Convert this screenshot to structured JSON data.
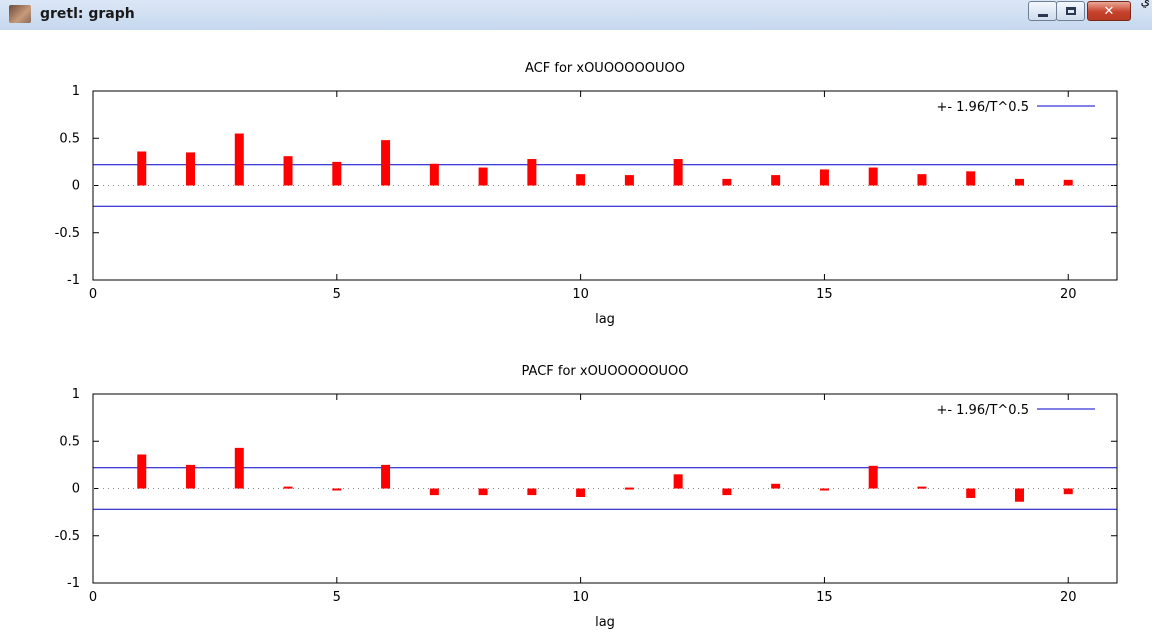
{
  "window": {
    "title": "gretl: graph",
    "corner_text": "ي"
  },
  "chart_data": [
    {
      "type": "bar",
      "title": "ACF for xOUOOOOOUOO",
      "xlabel": "lag",
      "ylabel": "",
      "xlim": [
        0,
        21
      ],
      "ylim": [
        -1,
        1
      ],
      "xticks": [
        0,
        5,
        10,
        15,
        20
      ],
      "yticks": [
        -1,
        -0.5,
        0,
        0.5,
        1
      ],
      "ytick_labels": [
        "-1",
        "-0.5",
        "0",
        "0.5",
        "1"
      ],
      "x": [
        1,
        2,
        3,
        4,
        5,
        6,
        7,
        8,
        9,
        10,
        11,
        12,
        13,
        14,
        15,
        16,
        17,
        18,
        19,
        20
      ],
      "values": [
        0.36,
        0.35,
        0.55,
        0.31,
        0.25,
        0.48,
        0.23,
        0.19,
        0.28,
        0.12,
        0.11,
        0.28,
        0.07,
        0.11,
        0.17,
        0.19,
        0.12,
        0.15,
        0.07,
        0.06
      ],
      "bar_color": "#ff0000",
      "band": {
        "label": "+- 1.96/T^0.5",
        "value": 0.22,
        "color": "#0000cc"
      },
      "legend_position": "top-right",
      "zero_line": "dotted"
    },
    {
      "type": "bar",
      "title": "PACF for xOUOOOOOUOO",
      "xlabel": "lag",
      "ylabel": "",
      "xlim": [
        0,
        21
      ],
      "ylim": [
        -1,
        1
      ],
      "xticks": [
        0,
        5,
        10,
        15,
        20
      ],
      "yticks": [
        -1,
        -0.5,
        0,
        0.5,
        1
      ],
      "ytick_labels": [
        "-1",
        "-0.5",
        "0",
        "0.5",
        "1"
      ],
      "x": [
        1,
        2,
        3,
        4,
        5,
        6,
        7,
        8,
        9,
        10,
        11,
        12,
        13,
        14,
        15,
        16,
        17,
        18,
        19,
        20
      ],
      "values": [
        0.36,
        0.25,
        0.43,
        0.02,
        -0.01,
        0.25,
        -0.07,
        -0.07,
        -0.07,
        -0.09,
        0.01,
        0.15,
        -0.07,
        0.05,
        -0.01,
        0.24,
        0.02,
        -0.1,
        -0.14,
        -0.06
      ],
      "bar_color": "#ff0000",
      "band": {
        "label": "+- 1.96/T^0.5",
        "value": 0.22,
        "color": "#0000cc"
      },
      "legend_position": "top-right",
      "zero_line": "dotted"
    }
  ]
}
